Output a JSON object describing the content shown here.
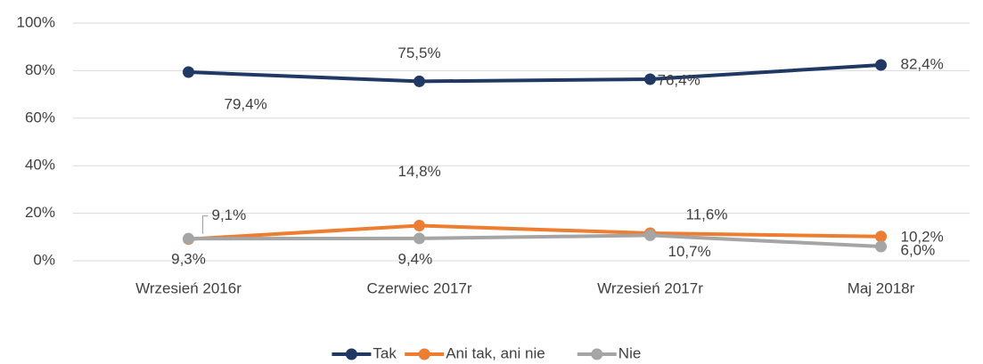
{
  "chart_data": {
    "type": "line",
    "categories": [
      "Wrzesień 2016r",
      "Czerwiec 2017r",
      "Wrzesień 2017r",
      "Maj 2018r"
    ],
    "series": [
      {
        "name": "Tak",
        "color": "#203864",
        "values": [
          79.4,
          75.5,
          76.4,
          82.4
        ],
        "value_labels": [
          "79,4%",
          "75,5%",
          "76,4%",
          "82,4%"
        ]
      },
      {
        "name": "Ani tak, ani nie",
        "color": "#ed7d31",
        "values": [
          9.1,
          14.8,
          11.6,
          10.2
        ],
        "value_labels": [
          "9,1%",
          "14,8%",
          "11,6%",
          "10,2%"
        ]
      },
      {
        "name": "Nie",
        "color": "#a5a5a5",
        "values": [
          9.3,
          9.4,
          10.7,
          6.0
        ],
        "value_labels": [
          "9,3%",
          "9,4%",
          "10,7%",
          "6,0%"
        ]
      }
    ],
    "ylim": [
      0,
      100
    ],
    "yticks": [
      {
        "value": 0,
        "label": "0%"
      },
      {
        "value": 20,
        "label": "20%"
      },
      {
        "value": 40,
        "label": "40%"
      },
      {
        "value": 60,
        "label": "60%"
      },
      {
        "value": 80,
        "label": "80%"
      },
      {
        "value": 100,
        "label": "100%"
      }
    ],
    "grid": true,
    "legend": "bottom"
  }
}
